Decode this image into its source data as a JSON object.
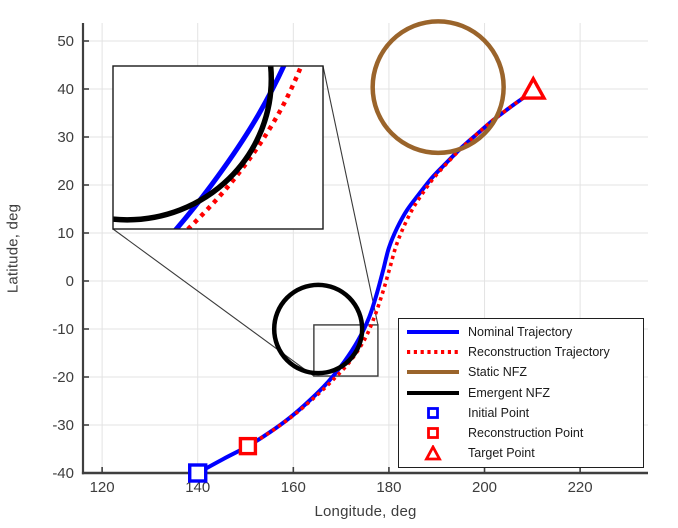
{
  "chart_data": {
    "type": "line",
    "title": "",
    "xlabel": "Longitude, deg",
    "ylabel": "Latitude, deg",
    "xlim": [
      116,
      234.2
    ],
    "ylim": [
      -40,
      53.75
    ],
    "x_ticks": [
      120,
      140,
      160,
      180,
      200,
      220
    ],
    "y_ticks": [
      -40,
      -30,
      -20,
      -10,
      0,
      10,
      20,
      30,
      40,
      50
    ],
    "grid": true,
    "grid_color": "#e3e3e3",
    "axis_color": "#3f3f3f",
    "tick_label_color": "#3d3d3d",
    "series": [
      {
        "name": "Nominal Trajectory",
        "style": "solid",
        "color": "#0000ff",
        "width": 4,
        "points": [
          [
            140,
            -40
          ],
          [
            145.3,
            -37.1
          ],
          [
            150.5,
            -34.4
          ],
          [
            155.1,
            -31.5
          ],
          [
            159.5,
            -28.3
          ],
          [
            163.5,
            -24.8
          ],
          [
            167.3,
            -21.0
          ],
          [
            170.6,
            -16.9
          ],
          [
            173.6,
            -12.3
          ],
          [
            175.9,
            -7.5
          ],
          [
            177.5,
            -2.5
          ],
          [
            178.8,
            2.3
          ],
          [
            180.0,
            6.9
          ],
          [
            181.7,
            11.0
          ],
          [
            183.8,
            14.8
          ],
          [
            186.3,
            18.1
          ],
          [
            189.0,
            21.5
          ],
          [
            192.0,
            24.6
          ],
          [
            195.1,
            27.7
          ],
          [
            198.4,
            30.6
          ],
          [
            201.8,
            33.5
          ],
          [
            205.4,
            36.2
          ],
          [
            208.3,
            38.3
          ],
          [
            210.2,
            39.8
          ]
        ]
      },
      {
        "name": "Reconstruction Trajectory",
        "style": "dotted",
        "color": "#ff0000",
        "width": 3.6,
        "points": [
          [
            150.5,
            -34.4
          ],
          [
            155.2,
            -31.45
          ],
          [
            159.7,
            -28.25
          ],
          [
            163.9,
            -24.7
          ],
          [
            168.0,
            -20.9
          ],
          [
            171.9,
            -16.7
          ],
          [
            174.9,
            -12.2
          ],
          [
            177.0,
            -7.4
          ],
          [
            178.7,
            -2.4
          ],
          [
            180.1,
            2.4
          ],
          [
            181.4,
            7.0
          ],
          [
            183.0,
            11.1
          ],
          [
            184.9,
            14.9
          ],
          [
            187.0,
            18.2
          ],
          [
            189.5,
            21.6
          ],
          [
            192.3,
            24.7
          ],
          [
            195.3,
            27.8
          ],
          [
            198.5,
            30.7
          ],
          [
            201.9,
            33.6
          ],
          [
            205.5,
            36.3
          ],
          [
            208.4,
            38.4
          ],
          [
            210.2,
            39.8
          ]
        ]
      }
    ],
    "zones": [
      {
        "name": "Static NFZ",
        "color": "#9A642B",
        "center": [
          190.3,
          40.4
        ],
        "radius": 13.7,
        "width": 4.5
      },
      {
        "name": "Emergent NFZ",
        "color": "#000000",
        "center": [
          165.2,
          -10.0
        ],
        "radius": 9.2,
        "width": 4.5
      }
    ],
    "markers": [
      {
        "name": "Initial Point",
        "shape": "square",
        "color": "#0000ff",
        "x": 140,
        "y": -40,
        "size": 16
      },
      {
        "name": "Reconstruction Point",
        "shape": "square",
        "color": "#ff0000",
        "x": 150.5,
        "y": -34.4,
        "size": 15
      },
      {
        "name": "Target Point",
        "shape": "triangle",
        "color": "#ff0000",
        "x": 210.2,
        "y": 39.8,
        "size": 21
      }
    ],
    "inset": {
      "xlim": [
        164.3,
        177.7
      ],
      "ylim": [
        -19.8,
        -9.15
      ]
    },
    "legend": {
      "position": "bottom-right",
      "entries": [
        {
          "label": "Nominal Trajectory",
          "swatch": {
            "kind": "line",
            "color": "#0000ff",
            "dash": false
          }
        },
        {
          "label": "Reconstruction Trajectory",
          "swatch": {
            "kind": "line",
            "color": "#ff0000",
            "dash": true
          }
        },
        {
          "label": "Static NFZ",
          "swatch": {
            "kind": "line",
            "color": "#9A642B",
            "dash": false
          }
        },
        {
          "label": "Emergent NFZ",
          "swatch": {
            "kind": "line",
            "color": "#000000",
            "dash": false
          }
        },
        {
          "label": "Initial Point",
          "swatch": {
            "kind": "marker",
            "shape": "square",
            "color": "#0000ff"
          }
        },
        {
          "label": "Reconstruction Point",
          "swatch": {
            "kind": "marker",
            "shape": "square",
            "color": "#ff0000"
          }
        },
        {
          "label": "Target Point",
          "swatch": {
            "kind": "marker",
            "shape": "triangle",
            "color": "#ff0000"
          }
        }
      ]
    }
  }
}
